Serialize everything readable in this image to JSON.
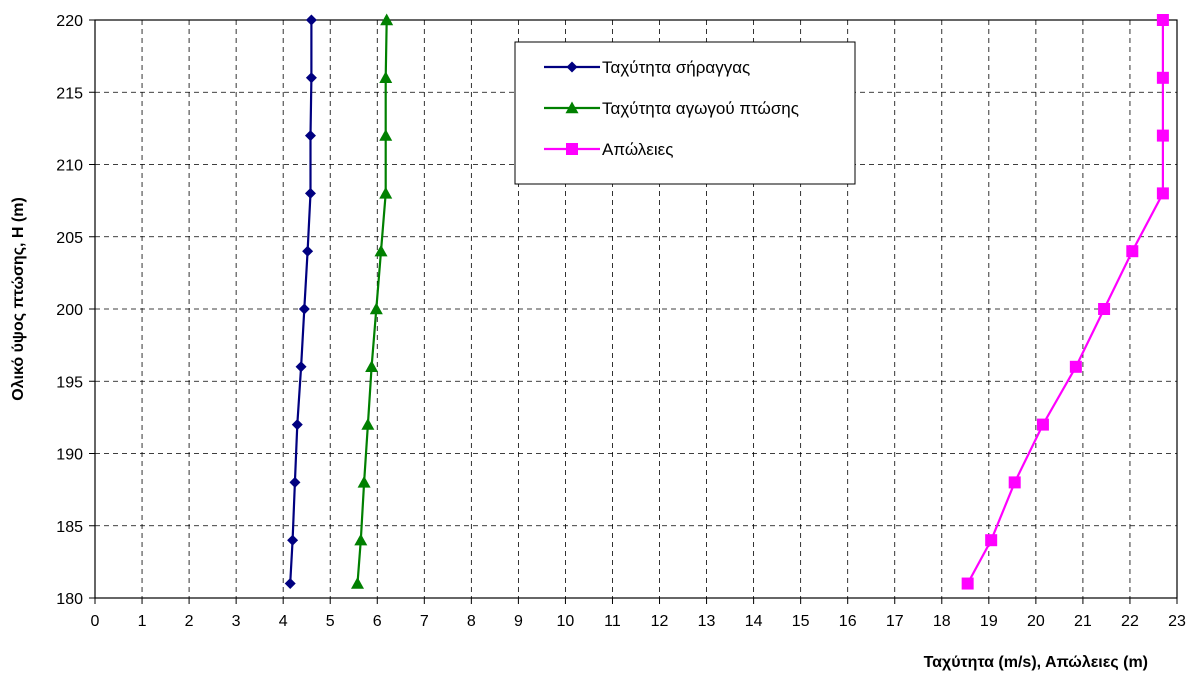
{
  "chart_data": {
    "type": "line",
    "title": "",
    "xlabel": "Ταχύτητα (m/s),  Απώλειες (m)",
    "ylabel": "Ολικό ύψος πτώσης, H (m)",
    "xlim": [
      0,
      23
    ],
    "ylim": [
      180,
      220
    ],
    "xticks": [
      0,
      1,
      2,
      3,
      4,
      5,
      6,
      7,
      8,
      9,
      10,
      11,
      12,
      13,
      14,
      15,
      16,
      17,
      18,
      19,
      20,
      21,
      22,
      23
    ],
    "yticks": [
      180,
      185,
      190,
      195,
      200,
      205,
      210,
      215,
      220
    ],
    "grid": true,
    "legend_position": "top-right",
    "series": [
      {
        "name": "Ταχύτητα σήραγγας",
        "color": "#000080",
        "marker": "diamond",
        "points": [
          [
            4.15,
            181
          ],
          [
            4.2,
            184
          ],
          [
            4.25,
            188
          ],
          [
            4.3,
            192
          ],
          [
            4.38,
            196
          ],
          [
            4.45,
            200
          ],
          [
            4.52,
            204
          ],
          [
            4.58,
            208
          ],
          [
            4.58,
            212
          ],
          [
            4.6,
            216
          ],
          [
            4.6,
            220
          ]
        ]
      },
      {
        "name": "Ταχύτητα αγωγού πτώσης",
        "color": "#008000",
        "marker": "triangle",
        "points": [
          [
            5.58,
            181
          ],
          [
            5.65,
            184
          ],
          [
            5.72,
            188
          ],
          [
            5.8,
            192
          ],
          [
            5.88,
            196
          ],
          [
            5.98,
            200
          ],
          [
            6.08,
            204
          ],
          [
            6.18,
            208
          ],
          [
            6.18,
            212
          ],
          [
            6.18,
            216
          ],
          [
            6.2,
            220
          ]
        ]
      },
      {
        "name": "Απώλειες",
        "color": "#ff00ff",
        "marker": "square",
        "points": [
          [
            18.55,
            181
          ],
          [
            19.05,
            184
          ],
          [
            19.55,
            188
          ],
          [
            20.15,
            192
          ],
          [
            20.85,
            196
          ],
          [
            21.45,
            200
          ],
          [
            22.05,
            204
          ],
          [
            22.7,
            208
          ],
          [
            22.7,
            212
          ],
          [
            22.7,
            216
          ],
          [
            22.7,
            220
          ]
        ]
      }
    ]
  }
}
